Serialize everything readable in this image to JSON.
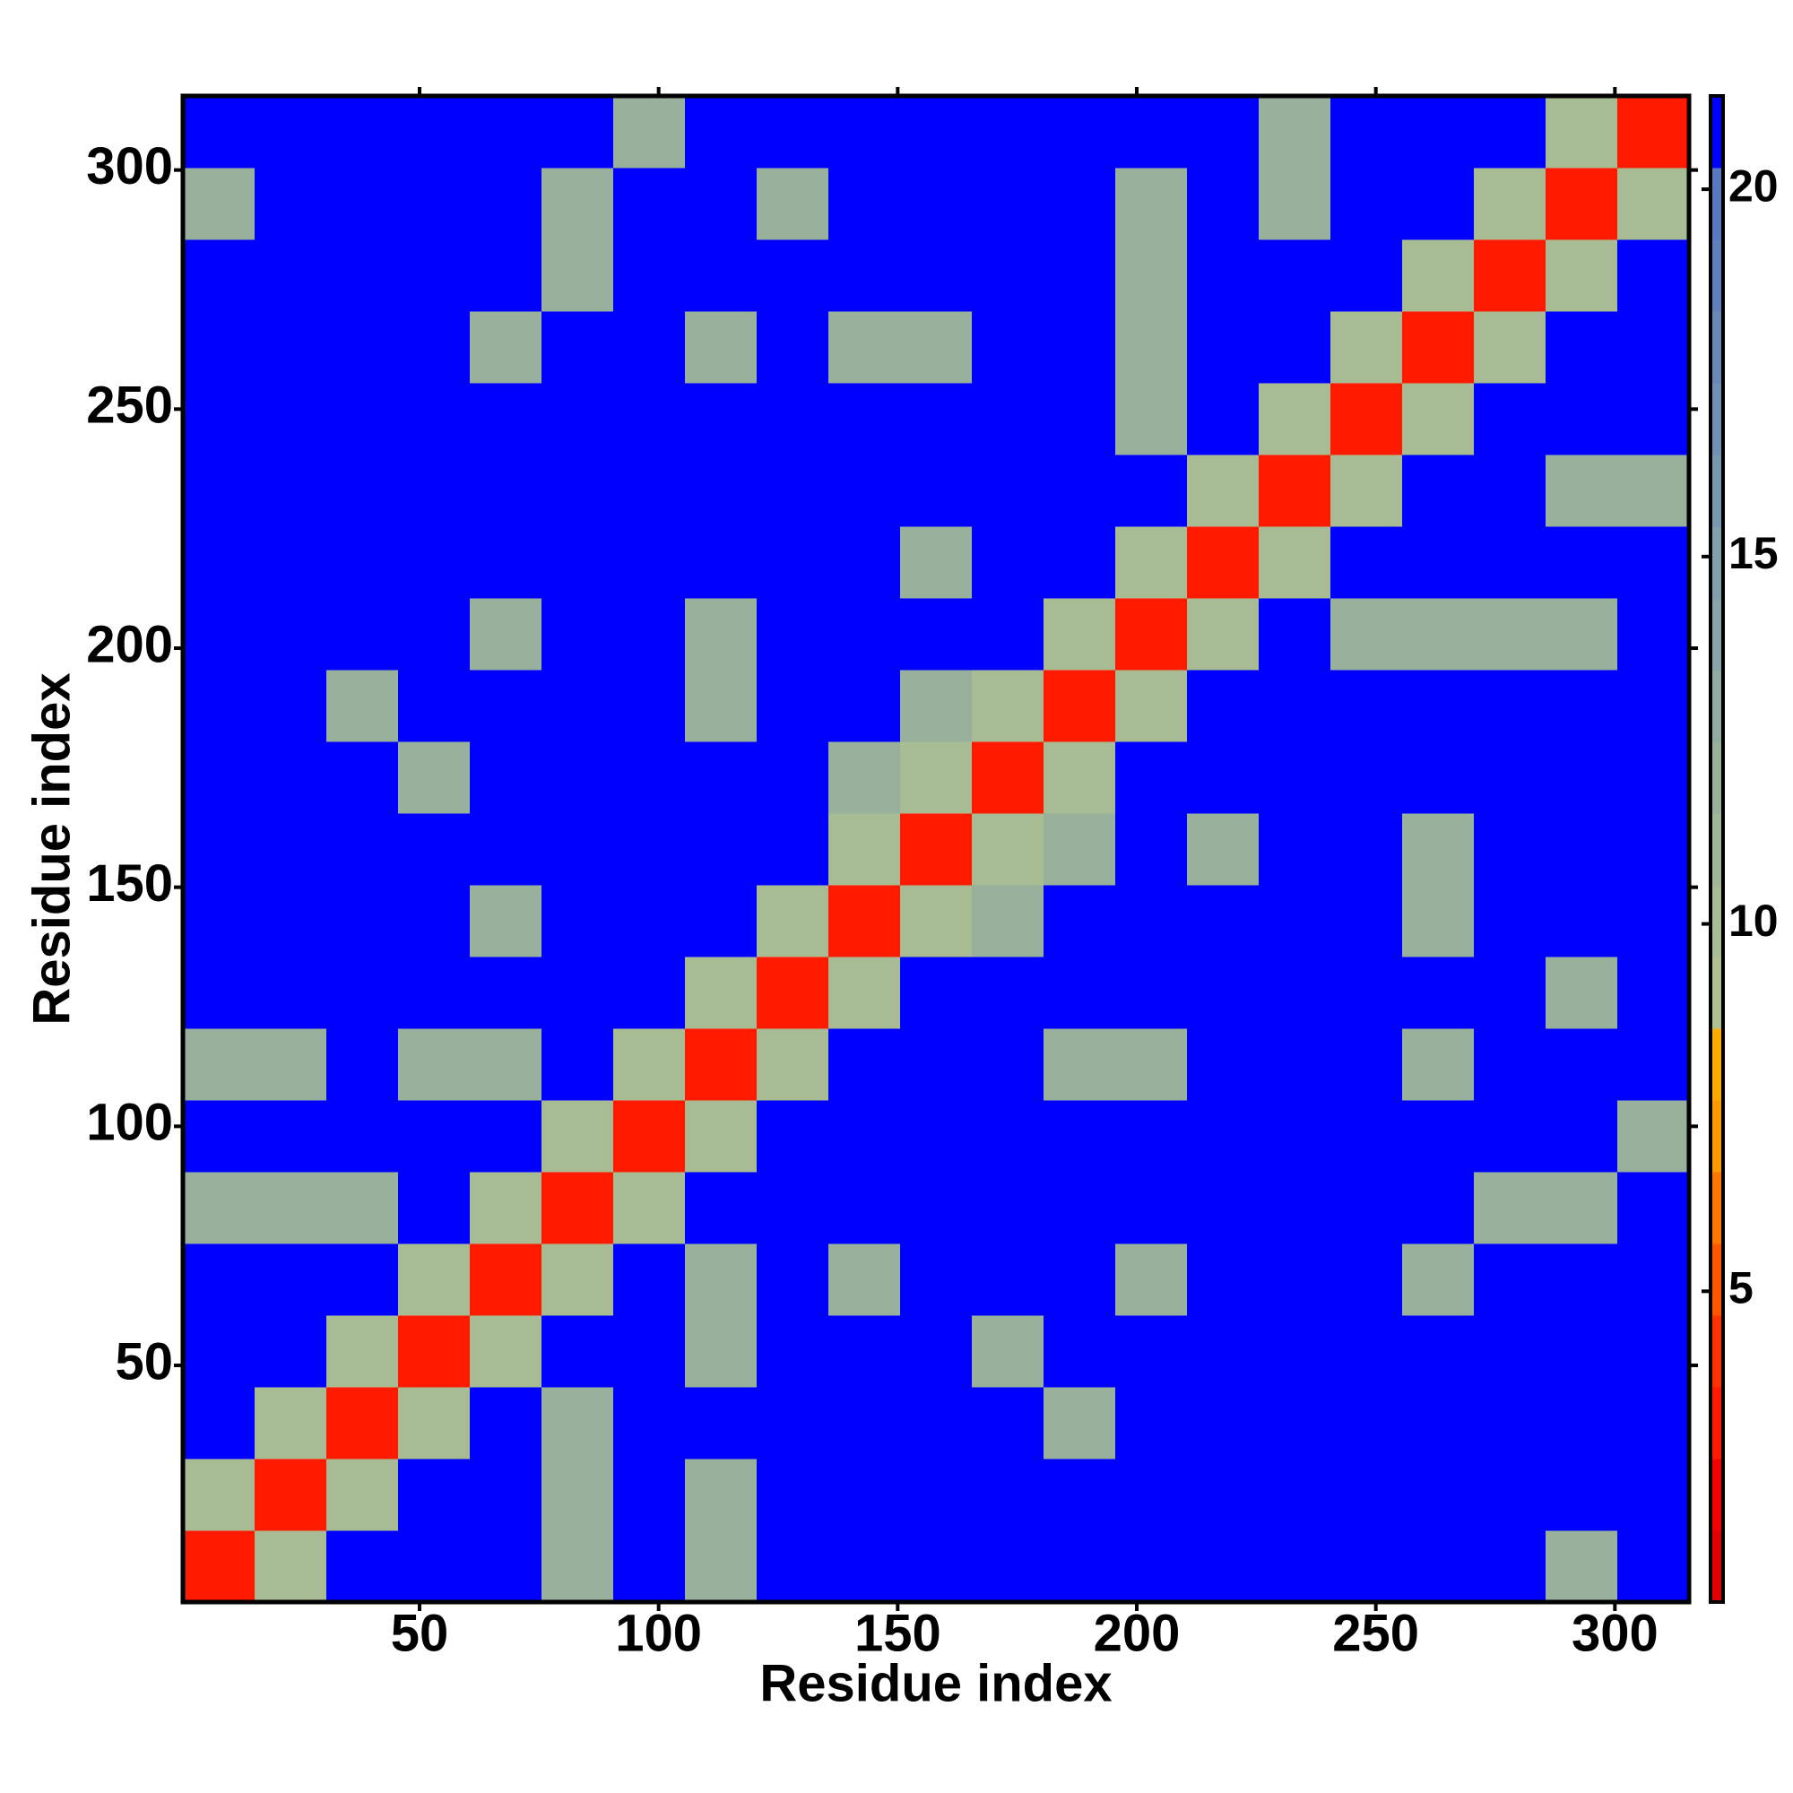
{
  "chart_data": {
    "type": "heatmap",
    "xlabel": "Residue index",
    "ylabel": "Residue index",
    "xlim": [
      0.5,
      315.5
    ],
    "ylim": [
      0.5,
      315.5
    ],
    "xticks": [
      50,
      100,
      150,
      200,
      250,
      300
    ],
    "yticks": [
      50,
      100,
      150,
      200,
      250,
      300
    ],
    "z": [
      [
        3,
        10,
        21,
        21,
        21,
        12,
        21,
        12,
        21,
        21,
        21,
        21,
        21,
        21,
        21,
        21,
        21,
        21,
        21,
        12,
        21
      ],
      [
        10,
        3,
        10,
        21,
        21,
        12,
        21,
        12,
        21,
        21,
        21,
        21,
        21,
        21,
        21,
        21,
        21,
        21,
        21,
        21,
        21
      ],
      [
        21,
        10,
        3,
        10,
        21,
        12,
        21,
        21,
        21,
        21,
        21,
        21,
        12,
        21,
        21,
        21,
        21,
        21,
        21,
        21,
        21
      ],
      [
        21,
        21,
        10,
        3,
        10,
        21,
        21,
        12,
        21,
        21,
        21,
        12,
        21,
        21,
        21,
        21,
        21,
        21,
        21,
        21,
        21
      ],
      [
        21,
        21,
        21,
        10,
        3,
        10,
        21,
        12,
        21,
        12,
        21,
        21,
        21,
        12,
        21,
        21,
        21,
        12,
        21,
        21,
        21
      ],
      [
        12,
        12,
        12,
        21,
        10,
        3,
        10,
        21,
        21,
        21,
        21,
        21,
        21,
        21,
        21,
        21,
        21,
        21,
        12,
        12,
        21
      ],
      [
        21,
        21,
        21,
        21,
        21,
        10,
        3,
        10,
        21,
        21,
        21,
        21,
        21,
        21,
        21,
        21,
        21,
        21,
        21,
        21,
        12
      ],
      [
        12,
        12,
        21,
        12,
        12,
        21,
        10,
        3,
        10,
        21,
        21,
        21,
        12,
        12,
        21,
        21,
        21,
        12,
        21,
        21,
        21
      ],
      [
        21,
        21,
        21,
        21,
        21,
        21,
        21,
        10,
        3,
        10,
        21,
        21,
        21,
        21,
        21,
        21,
        21,
        21,
        21,
        12,
        21
      ],
      [
        21,
        21,
        21,
        21,
        12,
        21,
        21,
        21,
        10,
        3,
        10,
        12,
        21,
        21,
        21,
        21,
        21,
        12,
        21,
        21,
        21
      ],
      [
        21,
        21,
        21,
        21,
        21,
        21,
        21,
        21,
        21,
        10,
        3,
        10,
        12,
        21,
        12,
        21,
        21,
        12,
        21,
        21,
        21
      ],
      [
        21,
        21,
        21,
        12,
        21,
        21,
        21,
        21,
        21,
        12,
        10,
        3,
        10,
        21,
        21,
        21,
        21,
        21,
        21,
        21,
        21
      ],
      [
        21,
        21,
        12,
        21,
        21,
        21,
        21,
        12,
        21,
        21,
        12,
        10,
        3,
        10,
        21,
        21,
        21,
        21,
        21,
        21,
        21
      ],
      [
        21,
        21,
        21,
        21,
        12,
        21,
        21,
        12,
        21,
        21,
        21,
        21,
        10,
        3,
        10,
        21,
        12,
        12,
        12,
        12,
        21
      ],
      [
        21,
        21,
        21,
        21,
        21,
        21,
        21,
        21,
        21,
        21,
        12,
        21,
        21,
        10,
        3,
        10,
        21,
        21,
        21,
        21,
        21
      ],
      [
        21,
        21,
        21,
        21,
        21,
        21,
        21,
        21,
        21,
        21,
        21,
        21,
        21,
        21,
        10,
        3,
        10,
        21,
        21,
        12,
        12
      ],
      [
        21,
        21,
        21,
        21,
        21,
        21,
        21,
        21,
        21,
        21,
        21,
        21,
        21,
        12,
        21,
        10,
        3,
        10,
        21,
        21,
        21
      ],
      [
        21,
        21,
        21,
        21,
        12,
        21,
        21,
        12,
        21,
        12,
        12,
        21,
        21,
        12,
        21,
        21,
        10,
        3,
        10,
        21,
        21
      ],
      [
        21,
        21,
        21,
        21,
        21,
        12,
        21,
        21,
        21,
        21,
        21,
        21,
        21,
        12,
        21,
        21,
        21,
        10,
        3,
        10,
        21
      ],
      [
        12,
        21,
        21,
        21,
        21,
        12,
        21,
        21,
        12,
        21,
        21,
        21,
        21,
        12,
        21,
        12,
        21,
        21,
        10,
        3,
        10
      ],
      [
        21,
        21,
        21,
        21,
        21,
        21,
        12,
        21,
        21,
        21,
        21,
        21,
        21,
        21,
        21,
        12,
        21,
        21,
        21,
        10,
        3
      ]
    ],
    "clim": [
      0.77,
      21.27
    ],
    "cticks": [
      5,
      10,
      15,
      20
    ],
    "colorscale": [
      "#e00000",
      "#f00000",
      "#ff1a00",
      "#ff3300",
      "#ff5500",
      "#ff7700",
      "#ff9900",
      "#ffaa00",
      "#b0c090",
      "#a8bc94",
      "#a0b898",
      "#98b09c",
      "#90aca0",
      "#88a4a8",
      "#80a0ac",
      "#7898b0",
      "#7090b4",
      "#6888b8",
      "#6080bc",
      "#5878c0",
      "#0000ff"
    ]
  }
}
